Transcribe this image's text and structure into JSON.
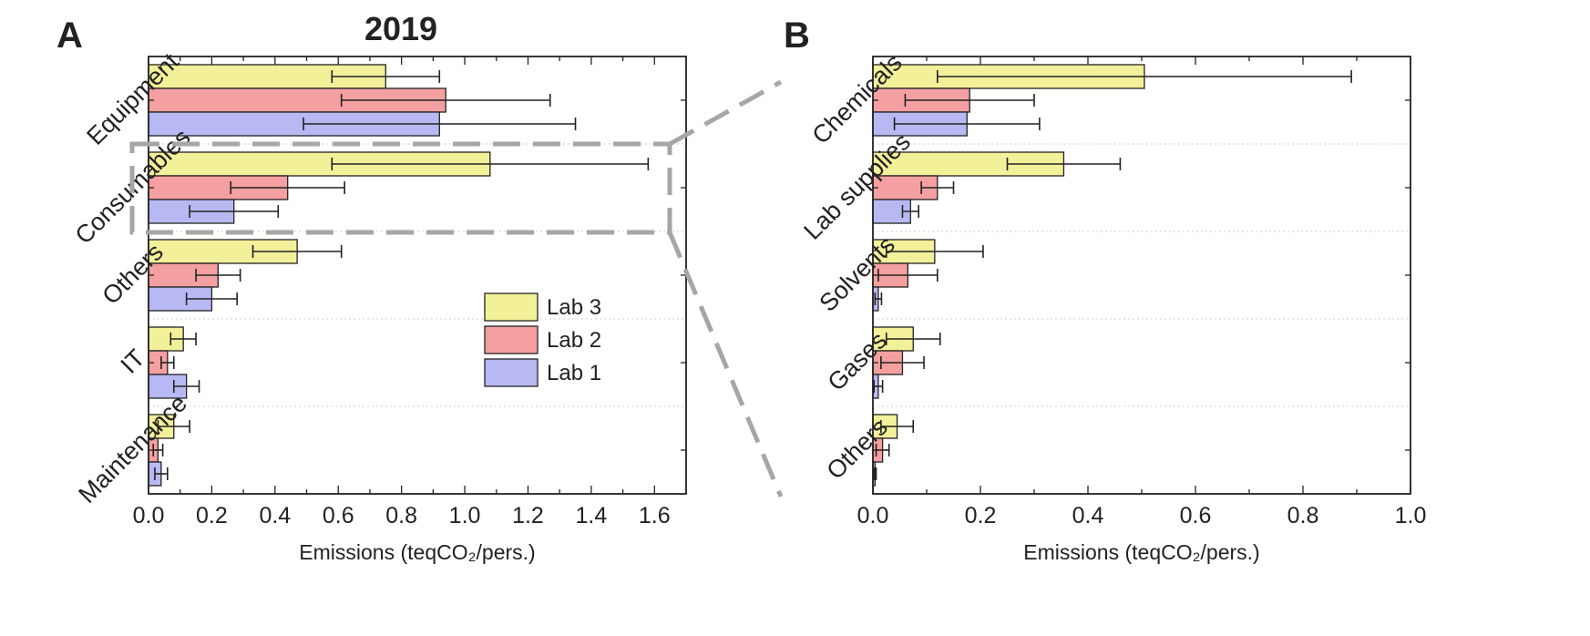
{
  "chart_data": [
    {
      "panel": "A",
      "type": "bar",
      "orientation": "horizontal",
      "title": "2019",
      "xlabel": "Emissions (teqCO₂/pers.)",
      "ylabel": "",
      "xlim": [
        0,
        1.7
      ],
      "xticks": [
        "0.0",
        "0.2",
        "0.4",
        "0.6",
        "0.8",
        "1.0",
        "1.2",
        "1.4",
        "1.6"
      ],
      "categories": [
        "Equipment",
        "Consumables",
        "Others",
        "IT",
        "Maintenance"
      ],
      "series": [
        {
          "name": "Lab 3",
          "color": "#f3f09a",
          "values": [
            0.75,
            1.08,
            0.47,
            0.11,
            0.08
          ],
          "errors": [
            0.17,
            0.5,
            0.14,
            0.04,
            0.05
          ]
        },
        {
          "name": "Lab 2",
          "color": "#f4a0a0",
          "values": [
            0.94,
            0.44,
            0.22,
            0.06,
            0.03
          ],
          "errors": [
            0.33,
            0.18,
            0.07,
            0.02,
            0.015
          ]
        },
        {
          "name": "Lab 1",
          "color": "#b8b9f2",
          "values": [
            0.92,
            0.27,
            0.2,
            0.12,
            0.04
          ],
          "errors": [
            0.43,
            0.14,
            0.08,
            0.04,
            0.02
          ]
        }
      ],
      "legend": {
        "position": "center-right"
      },
      "grid": false
    },
    {
      "panel": "B",
      "type": "bar",
      "orientation": "horizontal",
      "title": "",
      "xlabel": "Emissions (teqCO₂/pers.)",
      "ylabel": "",
      "xlim": [
        0,
        1.0
      ],
      "xticks": [
        "0.0",
        "0.2",
        "0.4",
        "0.6",
        "0.8",
        "1.0"
      ],
      "categories": [
        "Chemicals",
        "Lab supplies",
        "Solvents",
        "Gases",
        "Others"
      ],
      "series": [
        {
          "name": "Lab 3",
          "color": "#f3f09a",
          "values": [
            0.505,
            0.355,
            0.115,
            0.075,
            0.045
          ],
          "errors": [
            0.385,
            0.105,
            0.09,
            0.05,
            0.03
          ]
        },
        {
          "name": "Lab 2",
          "color": "#f4a0a0",
          "values": [
            0.18,
            0.12,
            0.065,
            0.055,
            0.018
          ],
          "errors": [
            0.12,
            0.03,
            0.055,
            0.04,
            0.012
          ]
        },
        {
          "name": "Lab 1",
          "color": "#b8b9f2",
          "values": [
            0.175,
            0.07,
            0.01,
            0.01,
            0.004
          ],
          "errors": [
            0.135,
            0.015,
            0.006,
            0.008,
            0.002
          ]
        }
      ],
      "grid": false
    }
  ],
  "panels": {
    "a_letter": "A",
    "b_letter": "B"
  }
}
